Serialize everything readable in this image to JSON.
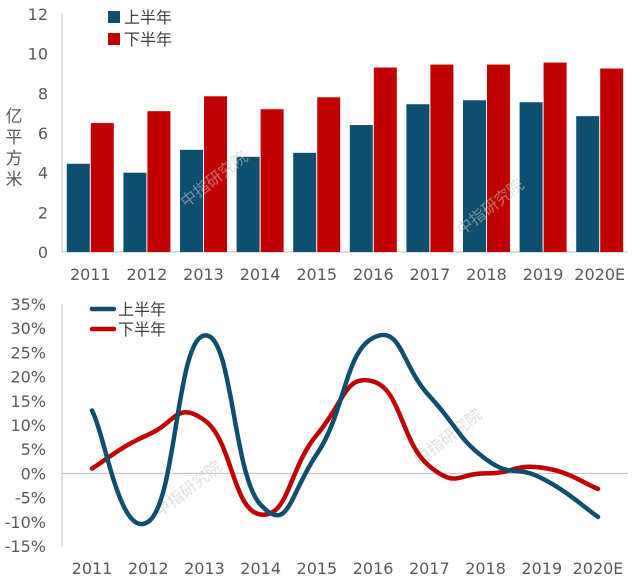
{
  "chart_data": [
    {
      "type": "bar",
      "categories": [
        "2011",
        "2012",
        "2013",
        "2014",
        "2015",
        "2016",
        "2017",
        "2018",
        "2019",
        "2020E"
      ],
      "series": [
        {
          "name": "上半年",
          "values": [
            4.45,
            4.0,
            5.15,
            4.8,
            5.0,
            6.4,
            7.45,
            7.65,
            7.55,
            6.85
          ]
        },
        {
          "name": "下半年",
          "values": [
            6.5,
            7.1,
            7.85,
            7.2,
            7.8,
            9.3,
            9.45,
            9.45,
            9.55,
            9.25
          ]
        }
      ],
      "ylabel": "亿平方米",
      "ylim": [
        0,
        12
      ],
      "yticks": [
        "0",
        "2",
        "4",
        "6",
        "8",
        "10",
        "12"
      ],
      "legend": "top-left",
      "watermarks": [
        "中指研究院",
        "中指研究院"
      ]
    },
    {
      "type": "line",
      "categories": [
        "2011",
        "2012",
        "2013",
        "2014",
        "2015",
        "2016",
        "2017",
        "2018",
        "2019",
        "2020E"
      ],
      "series": [
        {
          "name": "上半年",
          "values": [
            13,
            -10,
            28.5,
            -6.5,
            4,
            28,
            16,
            3,
            -1,
            -9
          ]
        },
        {
          "name": "下半年",
          "values": [
            1,
            8,
            11,
            -8.5,
            8,
            19,
            1.5,
            0,
            1.2,
            -3.2
          ]
        }
      ],
      "ylim": [
        -15,
        35
      ],
      "yticks": [
        "-15%",
        "-10%",
        "-5%",
        "0%",
        "5%",
        "10%",
        "15%",
        "20%",
        "25%",
        "30%",
        "35%"
      ],
      "legend": "top-left",
      "watermarks": [
        "中指研究院",
        "中指研究院"
      ]
    }
  ],
  "colors": {
    "first_half": "#0e4e6e",
    "second_half": "#c00000",
    "axis": "#bfbfbf",
    "text": "#595959"
  }
}
